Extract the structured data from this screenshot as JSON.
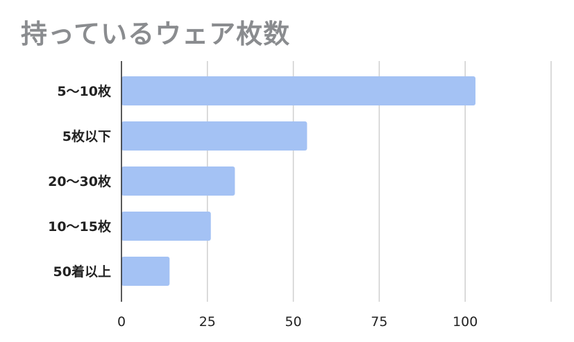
{
  "chart_data": {
    "type": "bar",
    "orientation": "horizontal",
    "title": "持っているウェア枚数",
    "categories": [
      "5〜10枚",
      "5枚以下",
      "20〜30枚",
      "10〜15枚",
      "50着以上"
    ],
    "values": [
      103,
      54,
      33,
      26,
      14
    ],
    "xlim": [
      0,
      125
    ],
    "xticks": [
      0,
      25,
      50,
      75,
      100
    ],
    "xtick_labels": [
      "0",
      "25",
      "50",
      "75",
      "100"
    ],
    "grid": true,
    "bar_color": "#a4c2f4",
    "xlabel": "",
    "ylabel": ""
  }
}
